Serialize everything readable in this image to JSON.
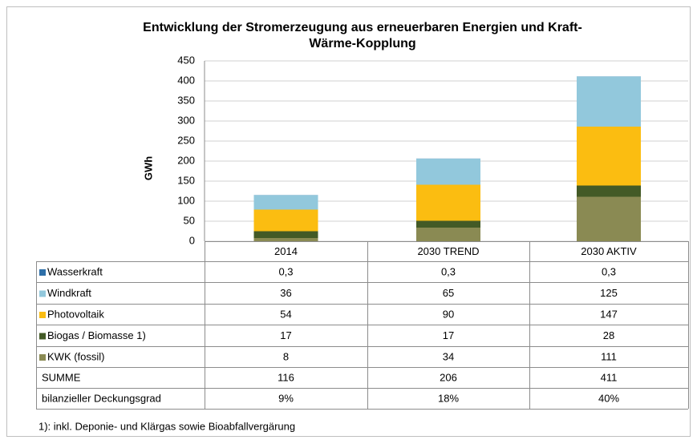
{
  "chart_data": {
    "type": "stacked_bar",
    "title": [
      "Entwicklung der Stromerzeugung aus erneuerbaren Energien und Kraft-",
      "Wärme-Kopplung"
    ],
    "y_label": "GWh",
    "categories": [
      "2014",
      "2030 TREND",
      "2030 AKTIV"
    ],
    "series": [
      {
        "name": "Wasserkraft",
        "color": "#2e6fa8",
        "values": [
          0.3,
          0.3,
          0.3
        ],
        "value_labels": [
          "0,3",
          "0,3",
          "0,3"
        ]
      },
      {
        "name": "Windkraft",
        "color": "#92c8dc",
        "values": [
          36,
          65,
          125
        ]
      },
      {
        "name": "Photovoltaik",
        "color": "#fbbd11",
        "values": [
          54,
          90,
          147
        ]
      },
      {
        "name": "Biogas / Biomasse 1)",
        "color": "#435a26",
        "values": [
          17,
          17,
          28
        ]
      },
      {
        "name": "KWK (fossil)",
        "color": "#8a8a53",
        "values": [
          8,
          34,
          111
        ]
      }
    ],
    "rows": [
      {
        "name": "SUMME",
        "values": [
          116,
          206,
          411
        ]
      },
      {
        "name": "bilanzieller Deckungsgrad",
        "values": [
          9,
          18,
          40
        ],
        "value_labels": [
          "9%",
          "18%",
          "40%"
        ]
      }
    ],
    "ylim": [
      0,
      450
    ],
    "yticks": [
      0,
      50,
      100,
      150,
      200,
      250,
      300,
      350,
      400,
      450
    ],
    "grid": true,
    "footnote": "1): inkl. Deponie- und Klärgas sowie Bioabfallvergärung"
  }
}
